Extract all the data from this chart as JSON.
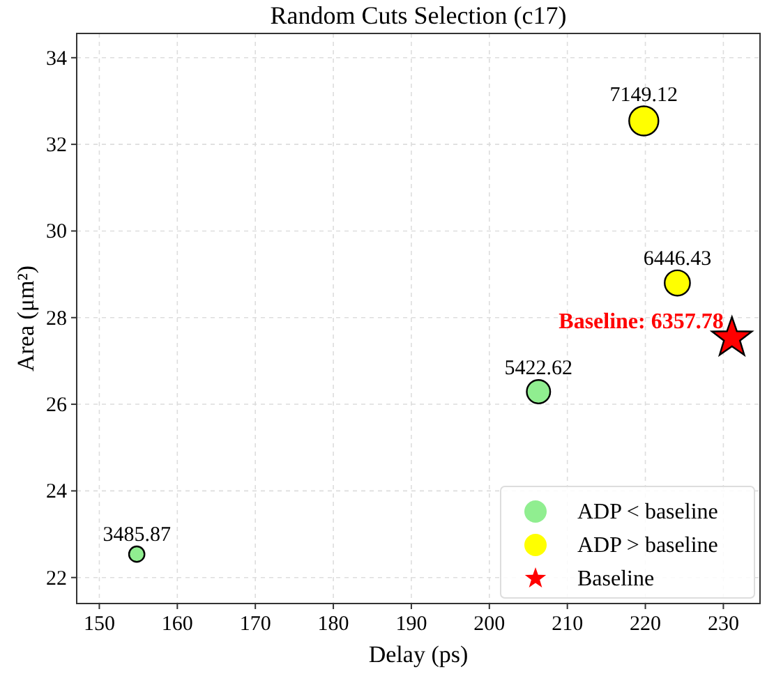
{
  "chart_data": {
    "type": "bubble",
    "title": "Random Cuts Selection (c17)",
    "xlabel": "Delay (ps)",
    "ylabel": "Area (μm²)",
    "xlim": [
      147.1,
      234.7
    ],
    "xticks": [
      150,
      160,
      170,
      180,
      190,
      200,
      210,
      220,
      230
    ],
    "ylim": [
      21.4,
      34.56
    ],
    "yticks": [
      22,
      24,
      26,
      28,
      30,
      32,
      34
    ],
    "grid": true,
    "legend": "bottom right",
    "series": [
      {
        "name": "ADP < baseline",
        "color": "#90ee90",
        "x": [
          154.8,
          206.3
        ],
        "values": [
          22.54,
          26.29
        ],
        "sizes": [
          0.28,
          0.64
        ]
      },
      {
        "name": "ADP > baseline",
        "color": "#ffff00",
        "x": [
          219.8,
          224.1
        ],
        "values": [
          32.54,
          28.8
        ],
        "sizes": [
          1,
          0.75
        ]
      },
      {
        "name": "Baseline",
        "type": "scatter",
        "marker": "star",
        "color": "#ff0000",
        "x": [
          231.1
        ],
        "values": [
          27.53
        ]
      }
    ],
    "annotations": [
      {
        "text": "3485.87",
        "x": 154.8,
        "y": 22.54
      },
      {
        "text": "5422.62",
        "x": 206.3,
        "y": 26.29
      },
      {
        "text": "7149.12",
        "x": 219.8,
        "y": 32.54
      },
      {
        "text": "6446.43",
        "x": 224.1,
        "y": 28.8
      },
      {
        "text": "Baseline: 6357.78",
        "x": 231.1,
        "y": 27.53
      }
    ]
  }
}
